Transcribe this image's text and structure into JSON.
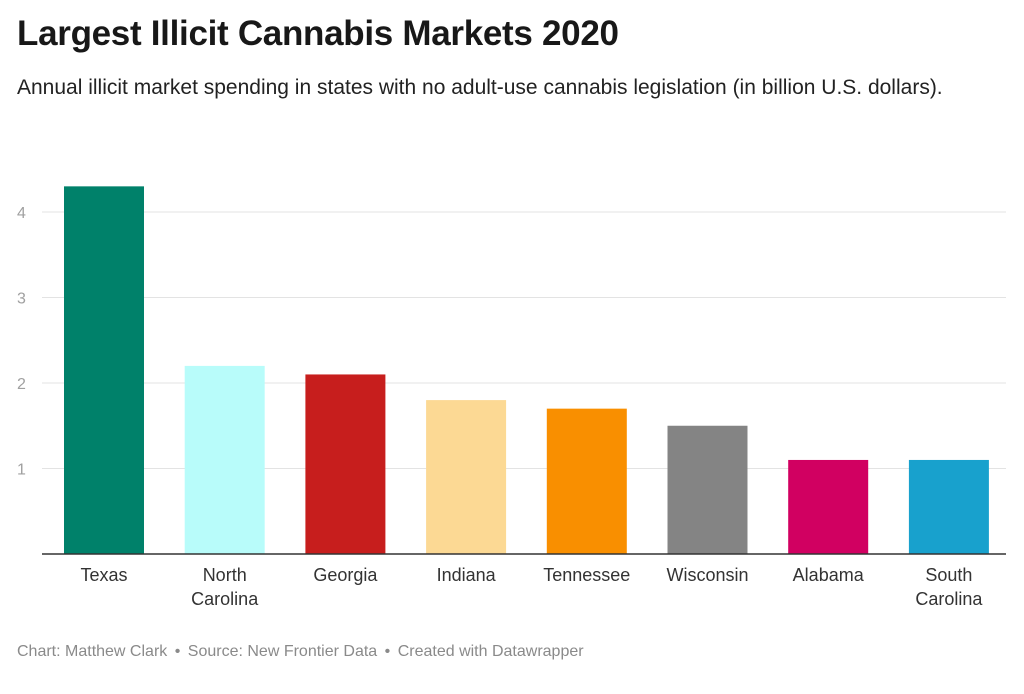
{
  "header": {
    "title": "Largest Illicit Cannabis Markets 2020",
    "subtitle": "Annual illicit market spending in states with no adult-use cannabis legislation (in billion U.S. dollars)."
  },
  "footer": {
    "chart_credit": "Chart: Matthew Clark",
    "source": "Source: New Frontier Data",
    "created_with": "Created with Datawrapper",
    "separator": "•"
  },
  "chart_data": {
    "type": "bar",
    "title": "Largest Illicit Cannabis Markets 2020",
    "subtitle": "Annual illicit market spending in states with no adult-use cannabis legislation (in billion U.S. dollars).",
    "categories": [
      [
        "Texas"
      ],
      [
        "North",
        "Carolina"
      ],
      [
        "Georgia"
      ],
      [
        "Indiana"
      ],
      [
        "Tennessee"
      ],
      [
        "Wisconsin"
      ],
      [
        "Alabama"
      ],
      [
        "South",
        "Carolina"
      ]
    ],
    "values": [
      4.3,
      2.2,
      2.1,
      1.8,
      1.7,
      1.5,
      1.1,
      1.1
    ],
    "colors": [
      "#00816a",
      "#b8fcfa",
      "#c71e1d",
      "#fcd994",
      "#f98f00",
      "#848484",
      "#d10061",
      "#18a1cd"
    ],
    "yticks": [
      1,
      2,
      3,
      4
    ],
    "ylim": [
      0,
      4.3
    ],
    "grid": true,
    "legend": "none"
  }
}
